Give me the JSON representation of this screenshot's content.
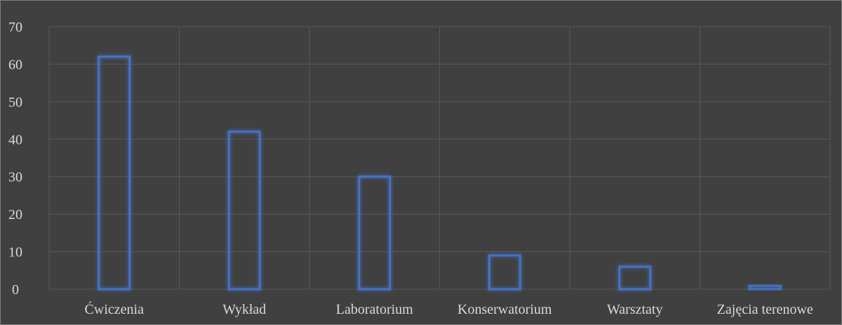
{
  "chart_data": {
    "type": "bar",
    "categories": [
      "Ćwiczenia",
      "Wykład",
      "Laboratorium",
      "Konserwatorium",
      "Warsztaty",
      "Zajęcia terenowe"
    ],
    "values": [
      62,
      42,
      30,
      9,
      6,
      1
    ],
    "ylim": [
      0,
      70
    ],
    "yticks": [
      0,
      10,
      20,
      30,
      40,
      50,
      60,
      70
    ],
    "grid": "both",
    "colors": {
      "background": "#404040",
      "bar_outline": "#4472c4",
      "bar_glow": "#5b9bd5",
      "gridline": "#595959",
      "text": "#d9d9d9"
    }
  }
}
